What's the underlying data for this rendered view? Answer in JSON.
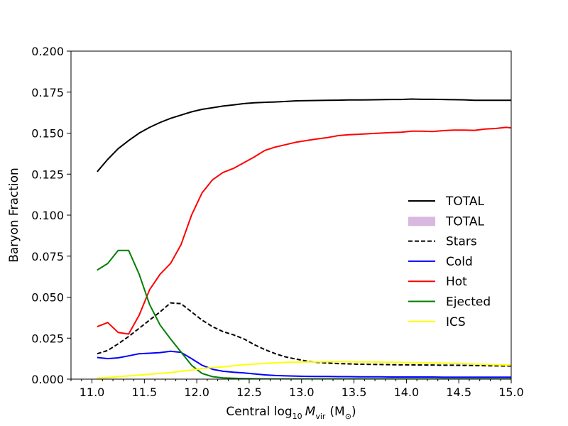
{
  "chart_data": {
    "type": "line",
    "title": "",
    "xlabel": "Central log",
    "xlabel_sub": "10",
    "xlabel_var": "M",
    "xlabel_var_sub": "vir",
    "xlabel_unit": "(M",
    "xlabel_unit_sub": "⊙",
    "xlabel_close": ")",
    "ylabel": "Baryon Fraction",
    "xlim": [
      10.8,
      15.0
    ],
    "ylim": [
      0.0,
      0.2
    ],
    "xticks": [
      "11.0",
      "11.5",
      "12.0",
      "12.5",
      "13.0",
      "13.5",
      "14.0",
      "14.5",
      "15.0"
    ],
    "yticks": [
      "0.000",
      "0.025",
      "0.050",
      "0.075",
      "0.100",
      "0.125",
      "0.150",
      "0.175",
      "0.200"
    ],
    "legend_position": "center-right",
    "grid": false,
    "x": [
      11.05,
      11.15,
      11.25,
      11.35,
      11.45,
      11.55,
      11.65,
      11.75,
      11.85,
      11.95,
      12.05,
      12.15,
      12.25,
      12.35,
      12.45,
      12.55,
      12.65,
      12.75,
      12.85,
      12.95,
      13.05,
      13.15,
      13.25,
      13.35,
      13.45,
      13.55,
      13.65,
      13.75,
      13.85,
      13.95,
      14.05,
      14.15,
      14.25,
      14.35,
      14.45,
      14.55,
      14.65,
      14.75,
      14.85,
      14.95,
      15.05
    ],
    "series": [
      {
        "name": "TOTAL",
        "color": "#000000",
        "dash": "solid",
        "values": [
          0.1265,
          0.134,
          0.1405,
          0.1455,
          0.15,
          0.1535,
          0.1565,
          0.159,
          0.161,
          0.163,
          0.1645,
          0.1655,
          0.1665,
          0.1672,
          0.168,
          0.1685,
          0.1688,
          0.169,
          0.1693,
          0.1697,
          0.1698,
          0.1699,
          0.17,
          0.1701,
          0.1702,
          0.1702,
          0.1703,
          0.1704,
          0.1705,
          0.1705,
          0.1708,
          0.1706,
          0.1706,
          0.1705,
          0.1704,
          0.1703,
          0.17,
          0.17,
          0.17,
          0.17,
          0.17
        ]
      },
      {
        "name": "Stars",
        "color": "#000000",
        "dash": "dashed",
        "values": [
          0.0155,
          0.0175,
          0.0215,
          0.026,
          0.031,
          0.036,
          0.041,
          0.0465,
          0.046,
          0.041,
          0.036,
          0.032,
          0.029,
          0.027,
          0.0245,
          0.021,
          0.018,
          0.0155,
          0.0135,
          0.0122,
          0.011,
          0.0102,
          0.0098,
          0.0095,
          0.0093,
          0.0091,
          0.009,
          0.0089,
          0.0088,
          0.0087,
          0.0087,
          0.0086,
          0.0086,
          0.0085,
          0.0085,
          0.0084,
          0.0083,
          0.0082,
          0.0081,
          0.008,
          0.008
        ]
      },
      {
        "name": "Cold",
        "color": "#0000ff",
        "dash": "solid",
        "values": [
          0.0132,
          0.0125,
          0.013,
          0.0142,
          0.0155,
          0.0158,
          0.0162,
          0.017,
          0.0163,
          0.0125,
          0.0085,
          0.006,
          0.0048,
          0.0042,
          0.0038,
          0.0032,
          0.0026,
          0.0022,
          0.002,
          0.0018,
          0.0017,
          0.0016,
          0.0016,
          0.0015,
          0.0015,
          0.0014,
          0.0014,
          0.0014,
          0.0013,
          0.0013,
          0.0013,
          0.0013,
          0.0013,
          0.0012,
          0.0012,
          0.0012,
          0.0012,
          0.0012,
          0.0012,
          0.0012,
          0.0012
        ]
      },
      {
        "name": "Hot",
        "color": "#ff0000",
        "dash": "solid",
        "values": [
          0.032,
          0.0345,
          0.0285,
          0.0275,
          0.039,
          0.0545,
          0.064,
          0.0705,
          0.082,
          0.1,
          0.1135,
          0.1215,
          0.126,
          0.1285,
          0.132,
          0.1355,
          0.1395,
          0.1415,
          0.143,
          0.1445,
          0.1455,
          0.1465,
          0.1473,
          0.1485,
          0.149,
          0.1493,
          0.1497,
          0.15,
          0.1503,
          0.1505,
          0.1512,
          0.1512,
          0.151,
          0.1515,
          0.1518,
          0.1518,
          0.1517,
          0.1525,
          0.1528,
          0.1535,
          0.153
        ]
      },
      {
        "name": "Ejected",
        "color": "#008000",
        "dash": "solid",
        "values": [
          0.0665,
          0.0705,
          0.0785,
          0.0785,
          0.064,
          0.0455,
          0.033,
          0.0245,
          0.0165,
          0.0085,
          0.0035,
          0.0015,
          0.0008,
          0.0005,
          0.0003,
          0.0002,
          0.0001,
          0.0001,
          0.0001,
          0.0001,
          0.0001,
          0.0001,
          0.0001,
          0.0001,
          0.0001,
          0.0001,
          0.0001,
          0.0001,
          0.0001,
          0.0001,
          0.0001,
          0.0001,
          0.0001,
          0.0001,
          0.0001,
          0.0001,
          0.0001,
          0.0001,
          0.0001,
          0.0001,
          0.0001
        ]
      },
      {
        "name": "ICS",
        "color": "#ffff00",
        "dash": "solid",
        "values": [
          0.0005,
          0.001,
          0.0015,
          0.002,
          0.0025,
          0.003,
          0.0035,
          0.004,
          0.0048,
          0.0055,
          0.0065,
          0.007,
          0.0075,
          0.0082,
          0.0088,
          0.0092,
          0.0096,
          0.0099,
          0.0102,
          0.0104,
          0.0105,
          0.0105,
          0.0106,
          0.0106,
          0.0106,
          0.0105,
          0.0105,
          0.0104,
          0.0103,
          0.0102,
          0.0101,
          0.01,
          0.0099,
          0.0098,
          0.0096,
          0.0094,
          0.0092,
          0.009,
          0.0088,
          0.0086,
          0.0085
        ]
      }
    ],
    "legend": [
      {
        "label": "TOTAL",
        "kind": "line",
        "color": "#000000",
        "dash": "solid"
      },
      {
        "label": "TOTAL",
        "kind": "patch",
        "color": "#d8b8e0",
        "dash": "solid"
      },
      {
        "label": "Stars",
        "kind": "line",
        "color": "#000000",
        "dash": "dashed"
      },
      {
        "label": "Cold",
        "kind": "line",
        "color": "#0000ff",
        "dash": "solid"
      },
      {
        "label": "Hot",
        "kind": "line",
        "color": "#ff0000",
        "dash": "solid"
      },
      {
        "label": "Ejected",
        "kind": "line",
        "color": "#008000",
        "dash": "solid"
      },
      {
        "label": "ICS",
        "kind": "line",
        "color": "#ffff00",
        "dash": "solid"
      }
    ]
  }
}
